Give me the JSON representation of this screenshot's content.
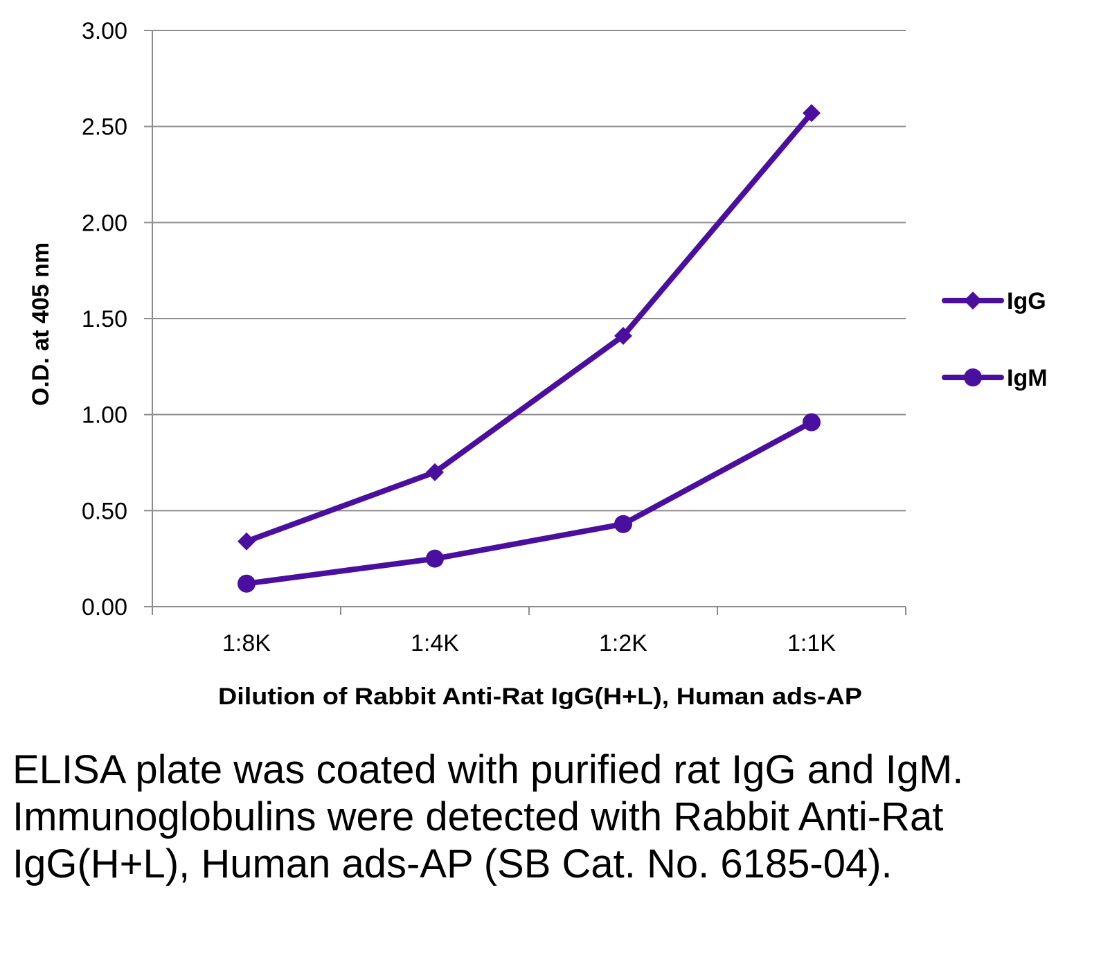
{
  "chart_data": {
    "type": "line",
    "categories": [
      "1:8K",
      "1:4K",
      "1:2K",
      "1:1K"
    ],
    "series": [
      {
        "name": "IgG",
        "marker": "diamond",
        "values": [
          0.34,
          0.7,
          1.41,
          2.57
        ]
      },
      {
        "name": "IgM",
        "marker": "circle",
        "values": [
          0.12,
          0.25,
          0.43,
          0.96
        ]
      }
    ],
    "title": "",
    "xlabel": "Dilution of Rabbit Anti-Rat IgG(H+L), Human ads-AP",
    "ylabel": "O.D. at 405 nm",
    "ylim": [
      0,
      3
    ],
    "yticks": [
      0,
      0.5,
      1,
      1.5,
      2,
      2.5,
      3
    ],
    "ytick_labels": [
      "0.00",
      "0.50",
      "1.00",
      "1.50",
      "2.00",
      "2.50",
      "3.00"
    ],
    "grid": true,
    "legend_position": "right",
    "line_color": "#4b0fa0"
  },
  "caption": "ELISA plate was coated with purified rat IgG and IgM.  Immunoglobulins were detected with Rabbit Anti-Rat IgG(H+L), Human ads-AP (SB Cat. No. 6185-04)."
}
